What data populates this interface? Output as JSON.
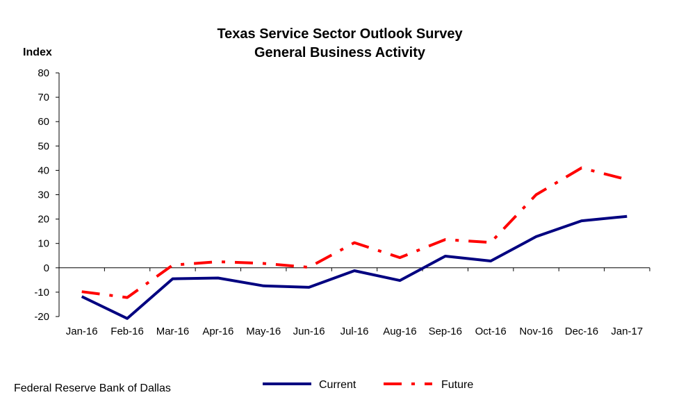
{
  "chart_data": {
    "type": "line",
    "title": [
      "Texas Service Sector Outlook Survey",
      "General Business Activity"
    ],
    "ylabel": "Index",
    "xlabel": "",
    "ylim": [
      -20,
      80
    ],
    "yticks": [
      -20,
      -10,
      0,
      10,
      20,
      30,
      40,
      50,
      60,
      70,
      80
    ],
    "categories": [
      "Jan-16",
      "Feb-16",
      "Mar-16",
      "Apr-16",
      "May-16",
      "Jun-16",
      "Jul-16",
      "Aug-16",
      "Sep-16",
      "Oct-16",
      "Nov-16",
      "Dec-16",
      "Jan-17"
    ],
    "series": [
      {
        "name": "Current",
        "color": "#000080",
        "style": "solid",
        "values": [
          -11.8,
          -20.8,
          -4.5,
          -4.2,
          -7.4,
          -8.0,
          -1.2,
          -5.2,
          4.8,
          2.8,
          12.8,
          19.3,
          21.1
        ]
      },
      {
        "name": "Future",
        "color": "#ff0000",
        "style": "dash-dot",
        "values": [
          -9.8,
          -12.2,
          1.1,
          2.5,
          1.8,
          0.2,
          10.3,
          4.2,
          11.6,
          10.4,
          30.0,
          41.0,
          36.2
        ]
      }
    ],
    "grid": false,
    "legend": "bottom"
  },
  "footer": {
    "source": "Federal Reserve Bank of Dallas"
  }
}
